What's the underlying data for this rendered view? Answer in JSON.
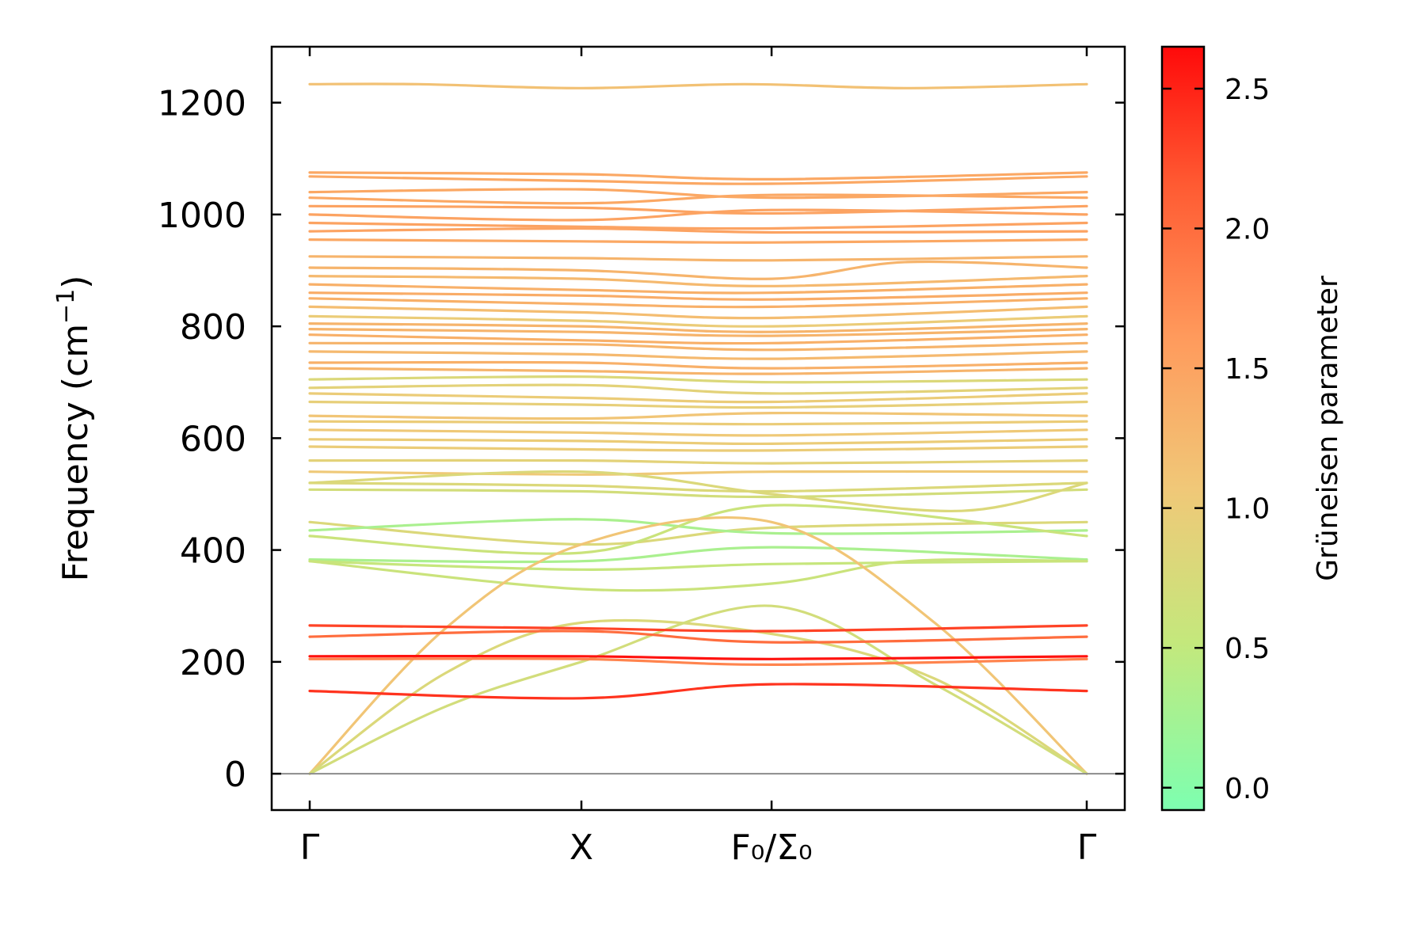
{
  "chart_data": {
    "type": "line",
    "ylabel": "Frequency (cm",
    "ylabel_sup": "−1",
    "ylabel_end": ")",
    "ylim": [
      -65,
      1300
    ],
    "yticks": [
      {
        "value": 0,
        "label": "0"
      },
      {
        "value": 200,
        "label": "200"
      },
      {
        "value": 400,
        "label": "400"
      },
      {
        "value": 600,
        "label": "600"
      },
      {
        "value": 800,
        "label": "800"
      },
      {
        "value": 1000,
        "label": "1000"
      },
      {
        "value": 1200,
        "label": "1200"
      }
    ],
    "xlim": [
      -0.07,
      1.5
    ],
    "xticks": [
      {
        "value": 0,
        "label": "Γ"
      },
      {
        "value": 0.5,
        "label": "X"
      },
      {
        "value": 0.85,
        "label": "F₀/Σ₀"
      },
      {
        "value": 1.43,
        "label": "Γ"
      }
    ],
    "colorbar": {
      "label": "Grüneisen parameter",
      "range": [
        -0.08,
        2.65
      ],
      "ticks": [
        {
          "value": 0.0,
          "label": "0.0"
        },
        {
          "value": 0.5,
          "label": "0.5"
        },
        {
          "value": 1.0,
          "label": "1.0"
        },
        {
          "value": 1.5,
          "label": "1.5"
        },
        {
          "value": 2.0,
          "label": "2.0"
        },
        {
          "value": 2.5,
          "label": "2.5"
        }
      ],
      "colors": [
        "#7dffb0",
        "#c4e87c",
        "#f0c878",
        "#ff9a5c",
        "#ff5a32",
        "#ff0a0a"
      ]
    },
    "series": [
      {
        "x": [
          0,
          0.2,
          0.5,
          0.8,
          1.1,
          1.43
        ],
        "y": [
          1233,
          1233,
          1226,
          1233,
          1226,
          1233
        ],
        "g": 1.15
      },
      {
        "x": [
          0,
          0.5,
          0.85,
          1.43
        ],
        "y": [
          1075,
          1072,
          1063,
          1075
        ],
        "g": 1.45
      },
      {
        "x": [
          0,
          0.5,
          0.85,
          1.43
        ],
        "y": [
          1068,
          1060,
          1055,
          1068
        ],
        "g": 1.45
      },
      {
        "x": [
          0,
          0.5,
          0.85,
          1.43
        ],
        "y": [
          1040,
          1045,
          1030,
          1040
        ],
        "g": 1.45
      },
      {
        "x": [
          0,
          0.5,
          0.85,
          1.43
        ],
        "y": [
          1030,
          1020,
          1035,
          1030
        ],
        "g": 1.45
      },
      {
        "x": [
          0,
          0.5,
          0.85,
          1.43
        ],
        "y": [
          1015,
          1012,
          1002,
          1015
        ],
        "g": 1.5
      },
      {
        "x": [
          0,
          0.5,
          0.85,
          1.43
        ],
        "y": [
          1000,
          990,
          1008,
          1000
        ],
        "g": 1.5
      },
      {
        "x": [
          0,
          0.5,
          0.85,
          1.43
        ],
        "y": [
          985,
          978,
          975,
          985
        ],
        "g": 1.5
      },
      {
        "x": [
          0,
          0.5,
          0.85,
          1.43
        ],
        "y": [
          970,
          975,
          968,
          970
        ],
        "g": 1.5
      },
      {
        "x": [
          0,
          0.5,
          0.85,
          1.43
        ],
        "y": [
          955,
          952,
          950,
          955
        ],
        "g": 1.45
      },
      {
        "x": [
          0,
          0.5,
          0.85,
          1.43
        ],
        "y": [
          925,
          922,
          918,
          925
        ],
        "g": 1.3
      },
      {
        "x": [
          0,
          0.5,
          0.85,
          1.1,
          1.43
        ],
        "y": [
          905,
          900,
          885,
          915,
          905
        ],
        "g": 1.3
      },
      {
        "x": [
          0,
          0.5,
          0.85,
          1.43
        ],
        "y": [
          890,
          885,
          872,
          890
        ],
        "g": 1.25
      },
      {
        "x": [
          0,
          0.5,
          0.85,
          1.43
        ],
        "y": [
          875,
          865,
          860,
          875
        ],
        "g": 1.35
      },
      {
        "x": [
          0,
          0.5,
          0.85,
          1.43
        ],
        "y": [
          860,
          855,
          848,
          860
        ],
        "g": 1.4
      },
      {
        "x": [
          0,
          0.5,
          0.85,
          1.43
        ],
        "y": [
          850,
          840,
          835,
          850
        ],
        "g": 1.35
      },
      {
        "x": [
          0,
          0.5,
          0.85,
          1.43
        ],
        "y": [
          835,
          825,
          815,
          835
        ],
        "g": 1.2
      },
      {
        "x": [
          0,
          0.5,
          0.85,
          1.43
        ],
        "y": [
          818,
          810,
          800,
          818
        ],
        "g": 1.0
      },
      {
        "x": [
          0,
          0.5,
          0.85,
          1.43
        ],
        "y": [
          805,
          800,
          790,
          805
        ],
        "g": 1.3
      },
      {
        "x": [
          0,
          0.5,
          0.85,
          1.43
        ],
        "y": [
          795,
          790,
          783,
          795
        ],
        "g": 1.3
      },
      {
        "x": [
          0,
          0.5,
          0.85,
          1.43
        ],
        "y": [
          785,
          775,
          770,
          785
        ],
        "g": 1.35
      },
      {
        "x": [
          0,
          0.5,
          0.85,
          1.43
        ],
        "y": [
          770,
          768,
          758,
          770
        ],
        "g": 1.3
      },
      {
        "x": [
          0,
          0.5,
          0.85,
          1.43
        ],
        "y": [
          755,
          750,
          742,
          755
        ],
        "g": 1.25
      },
      {
        "x": [
          0,
          0.5,
          0.85,
          1.43
        ],
        "y": [
          735,
          735,
          725,
          735
        ],
        "g": 1.35
      },
      {
        "x": [
          0,
          0.5,
          0.85,
          1.43
        ],
        "y": [
          725,
          720,
          715,
          725
        ],
        "g": 1.3
      },
      {
        "x": [
          0,
          0.5,
          0.85,
          1.43
        ],
        "y": [
          705,
          710,
          700,
          705
        ],
        "g": 0.8
      },
      {
        "x": [
          0,
          0.5,
          0.85,
          1.43
        ],
        "y": [
          690,
          695,
          680,
          690
        ],
        "g": 0.9
      },
      {
        "x": [
          0,
          0.5,
          0.85,
          1.43
        ],
        "y": [
          680,
          672,
          665,
          680
        ],
        "g": 1.0
      },
      {
        "x": [
          0,
          0.5,
          0.85,
          1.43
        ],
        "y": [
          665,
          660,
          655,
          665
        ],
        "g": 0.95
      },
      {
        "x": [
          0,
          0.5,
          0.85,
          1.43
        ],
        "y": [
          640,
          635,
          645,
          640
        ],
        "g": 1.1
      },
      {
        "x": [
          0,
          0.5,
          0.85,
          1.43
        ],
        "y": [
          630,
          628,
          625,
          630
        ],
        "g": 1.0
      },
      {
        "x": [
          0,
          0.5,
          0.85,
          1.43
        ],
        "y": [
          615,
          610,
          605,
          615
        ],
        "g": 1.05
      },
      {
        "x": [
          0,
          0.5,
          0.85,
          1.43
        ],
        "y": [
          598,
          595,
          590,
          598
        ],
        "g": 1.0
      },
      {
        "x": [
          0,
          0.5,
          0.85,
          1.43
        ],
        "y": [
          585,
          580,
          578,
          585
        ],
        "g": 1.0
      },
      {
        "x": [
          0,
          0.5,
          0.85,
          1.43
        ],
        "y": [
          560,
          560,
          555,
          560
        ],
        "g": 0.9
      },
      {
        "x": [
          0,
          0.5,
          0.85,
          1.43
        ],
        "y": [
          540,
          535,
          540,
          540
        ],
        "g": 1.05
      },
      {
        "x": [
          0,
          0.5,
          0.85,
          1.43
        ],
        "y": [
          520,
          515,
          505,
          520
        ],
        "g": 0.8
      },
      {
        "x": [
          0,
          0.5,
          0.85,
          1.43
        ],
        "y": [
          508,
          505,
          495,
          508
        ],
        "g": 0.7
      },
      {
        "x": [
          0,
          0.5,
          0.85,
          1.2,
          1.43
        ],
        "y": [
          520,
          540,
          500,
          470,
          520
        ],
        "g": 0.8
      },
      {
        "x": [
          0,
          0.5,
          0.85,
          1.43
        ],
        "y": [
          450,
          410,
          440,
          450
        ],
        "g": 0.8
      },
      {
        "x": [
          0,
          0.5,
          0.85,
          1.43
        ],
        "y": [
          435,
          455,
          430,
          435
        ],
        "g": 0.3
      },
      {
        "x": [
          0,
          0.5,
          0.85,
          1.43
        ],
        "y": [
          425,
          395,
          480,
          425
        ],
        "g": 0.6
      },
      {
        "x": [
          0,
          0.5,
          0.85,
          1.43
        ],
        "y": [
          383,
          380,
          405,
          383
        ],
        "g": 0.3
      },
      {
        "x": [
          0,
          0.5,
          0.85,
          1.43
        ],
        "y": [
          380,
          365,
          375,
          380
        ],
        "g": 0.55
      },
      {
        "x": [
          0,
          0.5,
          0.85,
          1.1,
          1.43
        ],
        "y": [
          380,
          330,
          340,
          380,
          380
        ],
        "g": 0.6
      },
      {
        "x": [
          0,
          0.25,
          0.5,
          0.85,
          1.15,
          1.43
        ],
        "y": [
          0,
          260,
          410,
          450,
          270,
          0
        ],
        "g": 1.1
      },
      {
        "x": [
          0,
          0.25,
          0.5,
          0.85,
          1.15,
          1.43
        ],
        "y": [
          0,
          180,
          270,
          250,
          170,
          0
        ],
        "g": 0.8
      },
      {
        "x": [
          0,
          0.25,
          0.5,
          0.85,
          1.15,
          1.43
        ],
        "y": [
          0,
          120,
          200,
          300,
          160,
          0
        ],
        "g": 0.7
      },
      {
        "x": [
          0,
          0.5,
          0.85,
          1.43
        ],
        "y": [
          265,
          260,
          255,
          265
        ],
        "g": 2.3
      },
      {
        "x": [
          0,
          0.5,
          0.85,
          1.43
        ],
        "y": [
          245,
          255,
          235,
          245
        ],
        "g": 2.0
      },
      {
        "x": [
          0,
          0.5,
          0.85,
          1.43
        ],
        "y": [
          210,
          210,
          205,
          210
        ],
        "g": 2.6
      },
      {
        "x": [
          0,
          0.5,
          0.85,
          1.43
        ],
        "y": [
          205,
          205,
          195,
          205
        ],
        "g": 1.8
      },
      {
        "x": [
          0,
          0.5,
          0.85,
          1.43
        ],
        "y": [
          148,
          135,
          160,
          148
        ],
        "g": 2.4
      }
    ]
  }
}
